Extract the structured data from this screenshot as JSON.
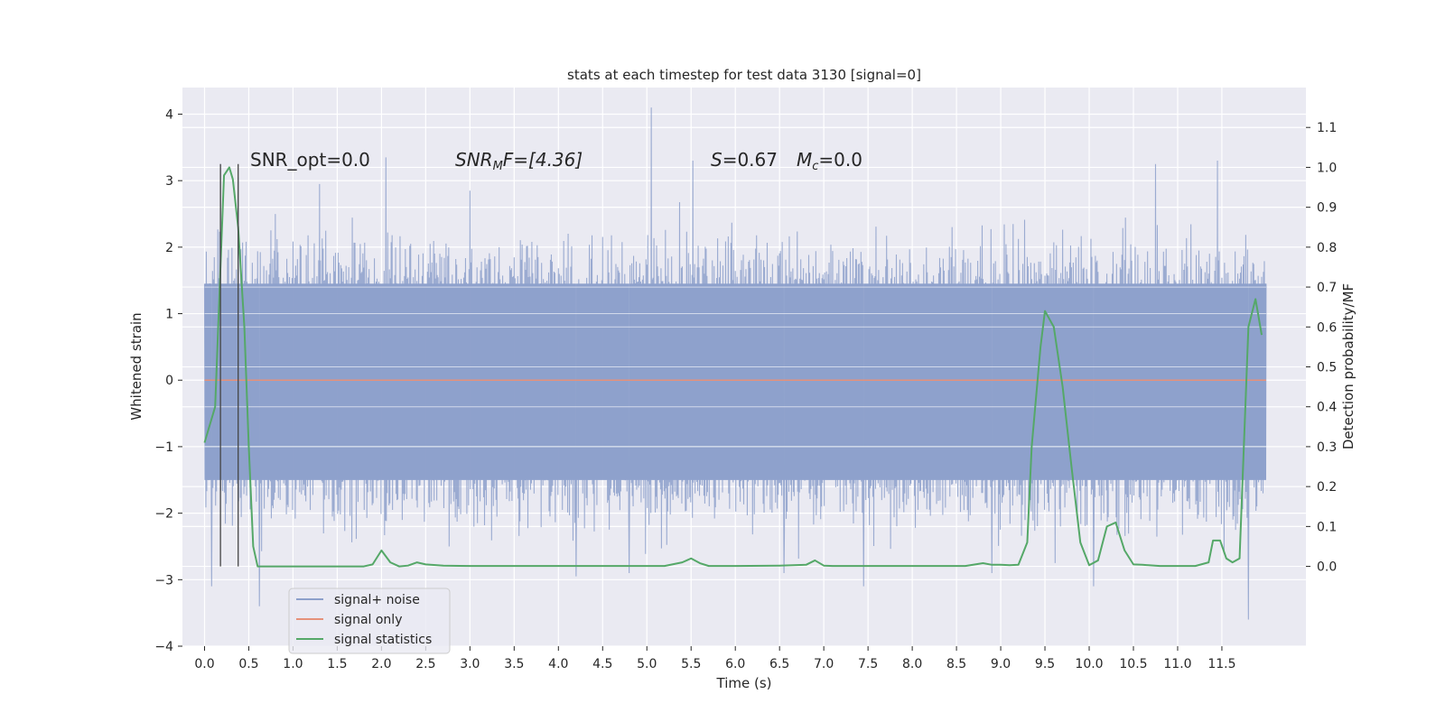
{
  "chart_data": {
    "type": "line",
    "title": "stats at each timestep for test data 3130 [signal=0]",
    "xlabel": "Time (s)",
    "ylabel": "Whitened strain",
    "y2label": "Detection probability/MF",
    "xlim": [
      -0.25,
      12.45
    ],
    "ylim": [
      -4.0,
      4.4
    ],
    "y2lim": [
      -0.2,
      1.2
    ],
    "x_ticks": [
      0.0,
      0.5,
      1.0,
      1.5,
      2.0,
      2.5,
      3.0,
      3.5,
      4.0,
      4.5,
      5.0,
      5.5,
      6.0,
      6.5,
      7.0,
      7.5,
      8.0,
      8.5,
      9.0,
      9.5,
      10.0,
      10.5,
      11.0,
      11.5
    ],
    "x_tick_labels": [
      "0.0",
      "0.5",
      "1.0",
      "1.5",
      "2.0",
      "2.5",
      "3.0",
      "3.5",
      "4.0",
      "4.5",
      "5.0",
      "5.5",
      "6.0",
      "6.5",
      "7.0",
      "7.5",
      "8.0",
      "8.5",
      "9.0",
      "9.5",
      "10.0",
      "10.5",
      "11.0",
      "11.5"
    ],
    "y_ticks": [
      -4,
      -3,
      -2,
      -1,
      0,
      1,
      2,
      3,
      4
    ],
    "y_tick_labels": [
      "−4",
      "−3",
      "−2",
      "−1",
      "0",
      "1",
      "2",
      "3",
      "4"
    ],
    "y2_ticks": [
      0.0,
      0.1,
      0.2,
      0.3,
      0.4,
      0.5,
      0.6,
      0.7,
      0.8,
      0.9,
      1.0,
      1.1
    ],
    "y2_tick_labels": [
      "0.0",
      "0.1",
      "0.2",
      "0.3",
      "0.4",
      "0.5",
      "0.6",
      "0.7",
      "0.8",
      "0.9",
      "1.0",
      "1.1"
    ],
    "grid": true,
    "legend_position": "lower-left",
    "annotations": {
      "snr_opt": "SNR_opt=0.0",
      "snr_mf_sym": "SNR",
      "snr_mf_sub": "M",
      "snr_mf_rest": "F=[4.36]",
      "s_sym": "S",
      "s_rest": "=0.67",
      "mc_sym": "M",
      "mc_sub": "c",
      "mc_rest": "=0.0"
    },
    "vlines_x": [
      0.18,
      0.38
    ],
    "series": [
      {
        "name": "signal+ noise",
        "color": "#8da0cb",
        "axis": "left",
        "x_range": [
          0.0,
          12.0
        ],
        "envelope": {
          "core_low": -1.5,
          "core_high": 1.45,
          "spike_max": 4.1,
          "spike_min": -3.6
        },
        "spikes": [
          [
            0.18,
            3.25
          ],
          [
            0.38,
            3.05
          ],
          [
            0.08,
            -3.1
          ],
          [
            0.62,
            -3.4
          ],
          [
            2.05,
            3.35
          ],
          [
            4.2,
            -2.95
          ],
          [
            5.05,
            4.1
          ],
          [
            5.52,
            3.3
          ],
          [
            6.55,
            -2.9
          ],
          [
            7.45,
            -3.1
          ],
          [
            10.05,
            -3.1
          ],
          [
            10.75,
            3.25
          ],
          [
            11.45,
            3.3
          ],
          [
            11.8,
            -3.6
          ],
          [
            1.3,
            2.95
          ],
          [
            3.0,
            2.85
          ],
          [
            8.9,
            -2.9
          ],
          [
            4.8,
            -2.9
          ]
        ]
      },
      {
        "name": "signal only",
        "color": "#e5917a",
        "axis": "left",
        "x": [
          0.0,
          12.0
        ],
        "y": [
          0.0,
          0.0
        ]
      },
      {
        "name": "signal statistics",
        "color": "#55a868",
        "axis": "right",
        "x": [
          0.0,
          0.12,
          0.18,
          0.22,
          0.28,
          0.32,
          0.38,
          0.45,
          0.5,
          0.55,
          0.6,
          0.65,
          0.8,
          1.5,
          1.8,
          1.9,
          2.0,
          2.1,
          2.2,
          2.3,
          2.4,
          2.5,
          2.7,
          3.0,
          4.0,
          5.2,
          5.4,
          5.5,
          5.6,
          5.7,
          6.0,
          6.5,
          6.8,
          6.9,
          7.0,
          7.1,
          7.3,
          8.0,
          8.6,
          8.8,
          8.9,
          9.0,
          9.1,
          9.2,
          9.3,
          9.35,
          9.45,
          9.5,
          9.6,
          9.7,
          9.8,
          9.9,
          10.0,
          10.1,
          10.2,
          10.3,
          10.4,
          10.5,
          10.6,
          10.8,
          11.0,
          11.2,
          11.35,
          11.4,
          11.48,
          11.55,
          11.62,
          11.7,
          11.8,
          11.88,
          11.95
        ],
        "y": [
          0.31,
          0.4,
          0.75,
          0.98,
          1.0,
          0.97,
          0.85,
          0.6,
          0.3,
          0.05,
          0.0,
          0.0,
          0.0,
          0.0,
          0.0,
          0.005,
          0.04,
          0.01,
          0.0,
          0.002,
          0.01,
          0.005,
          0.002,
          0.001,
          0.001,
          0.001,
          0.01,
          0.02,
          0.008,
          0.001,
          0.001,
          0.002,
          0.004,
          0.015,
          0.002,
          0.001,
          0.001,
          0.001,
          0.001,
          0.008,
          0.004,
          0.004,
          0.003,
          0.004,
          0.06,
          0.3,
          0.55,
          0.64,
          0.6,
          0.45,
          0.25,
          0.06,
          0.003,
          0.015,
          0.1,
          0.11,
          0.04,
          0.005,
          0.004,
          0.001,
          0.001,
          0.001,
          0.01,
          0.065,
          0.065,
          0.02,
          0.01,
          0.02,
          0.6,
          0.67,
          0.58
        ]
      }
    ]
  }
}
